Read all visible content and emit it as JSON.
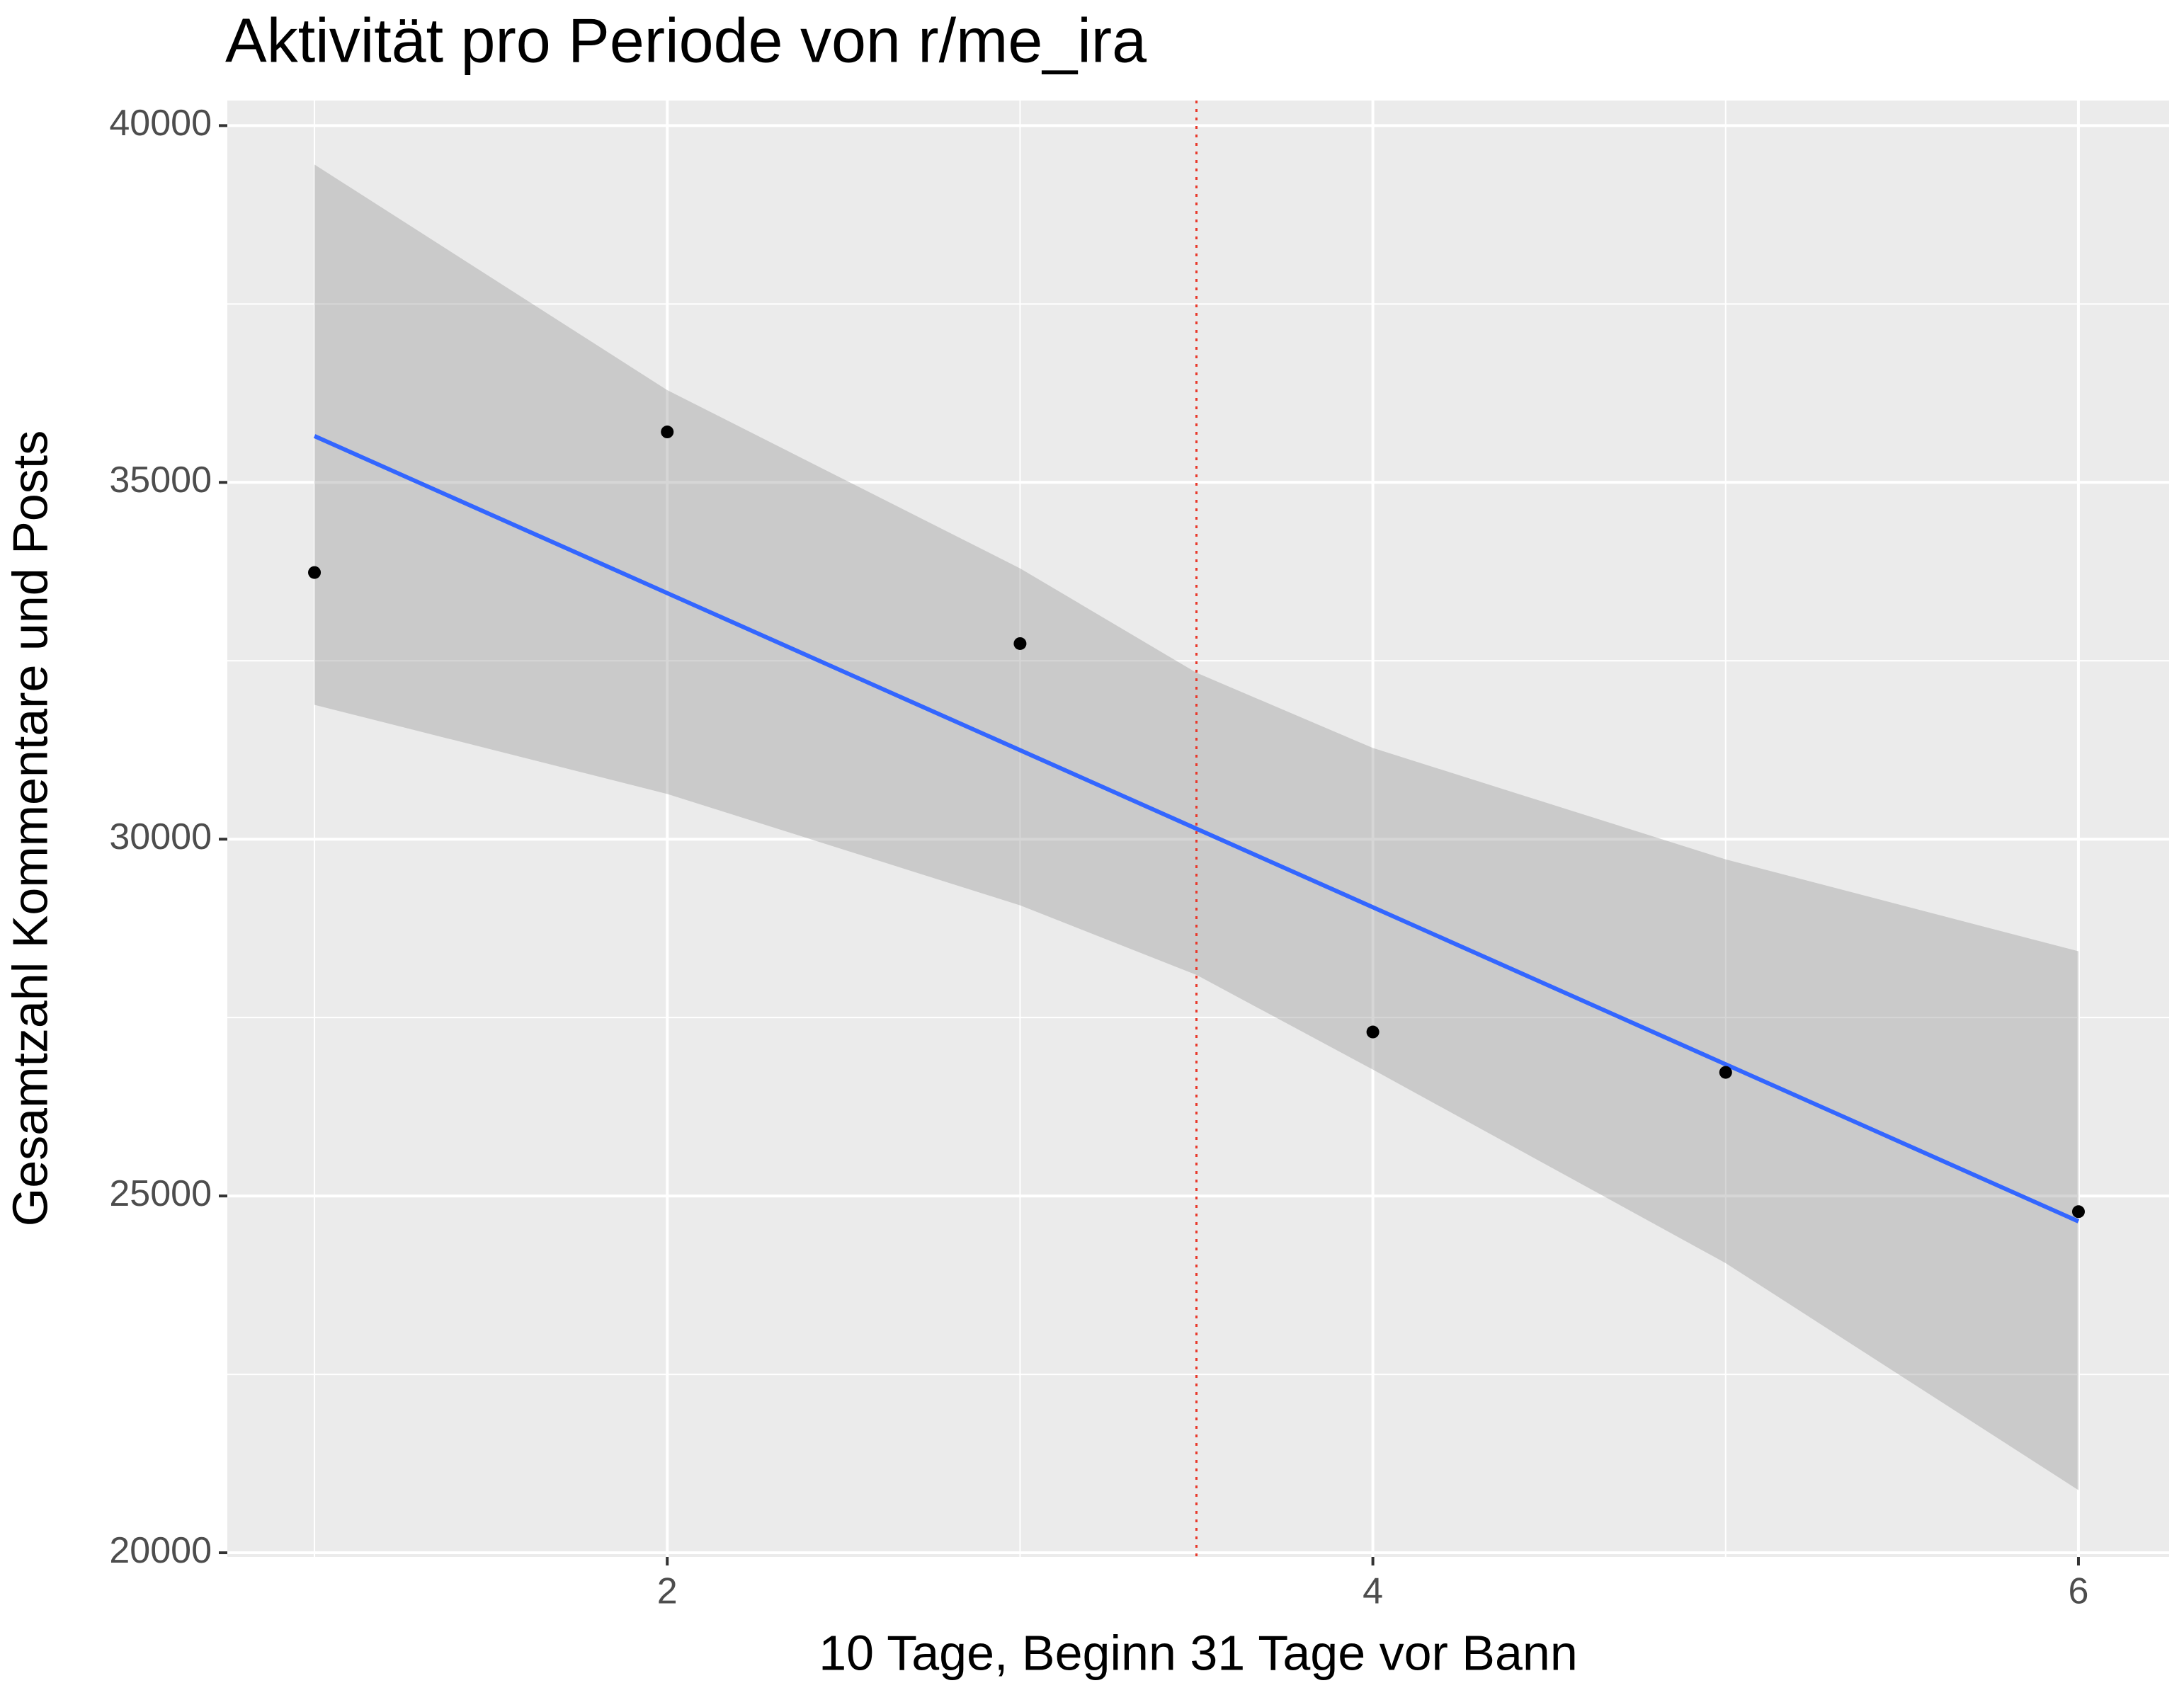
{
  "chart_data": {
    "type": "scatter",
    "title": "Aktivität pro Periode von r/me_ira",
    "x_label": "10 Tage, Beginn 31 Tage vor Bann",
    "y_label": "Gesamtzahl Kommentare und Posts",
    "x": [
      1,
      2,
      3,
      4,
      5,
      6
    ],
    "values": [
      33737,
      35707,
      32741,
      27298,
      26732,
      24780
    ],
    "color": "#000000",
    "fit": {
      "x": [
        1,
        6
      ],
      "values": [
        35649,
        24644
      ],
      "color": "#3366ff"
    },
    "ribbon": {
      "x": [
        1,
        2,
        3,
        3.5,
        4,
        5,
        6
      ],
      "upper": [
        39454,
        36293,
        33795,
        32332,
        31278,
        29717,
        28429
      ],
      "lower": [
        31883,
        30634,
        29073,
        28098,
        26771,
        24059,
        20878
      ],
      "color": "#999999"
    },
    "vline": {
      "x": 3.5,
      "color": "#e8392b"
    },
    "xlim": [
      0.753,
      6.257
    ],
    "ylim": [
      19941,
      40351
    ],
    "xticks": [
      2,
      4,
      6
    ],
    "yticks": [
      20000,
      25000,
      30000,
      35000,
      40000
    ],
    "grid": true
  }
}
